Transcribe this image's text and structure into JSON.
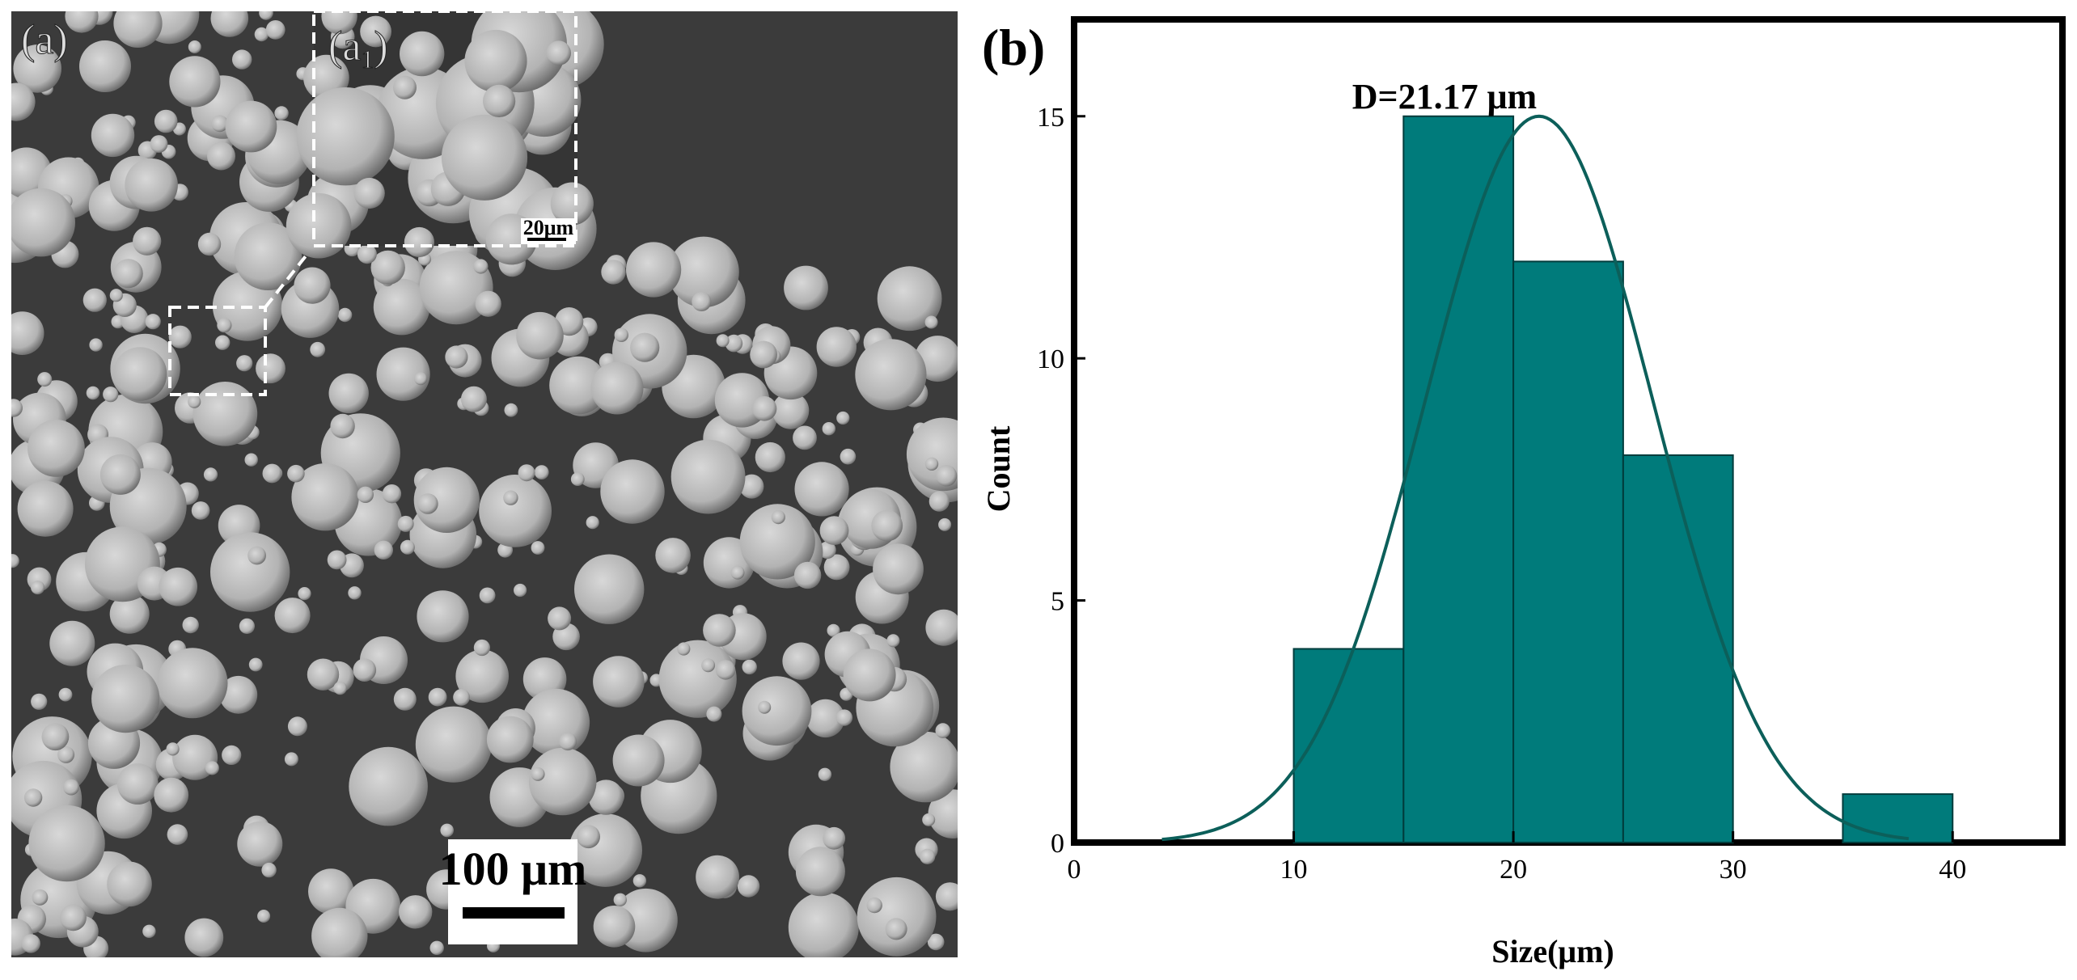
{
  "panel_a": {
    "label": "(a)",
    "inset_label_main": "(a",
    "inset_label_sub": "1",
    "inset_label_close": ")",
    "inset_scale": "20μm",
    "main_scale": "100 μm",
    "colors": {
      "background": "#3b3b3b",
      "particle": "#b3b3b3",
      "particle_edge": "#6a6a6a",
      "dash": "#ffffff"
    }
  },
  "panel_b": {
    "label": "(b)",
    "annotation": "D=21.17 μm"
  },
  "chart_data": {
    "type": "bar",
    "title": "",
    "xlabel": "Size(μm)",
    "ylabel": "Count",
    "xlim": [
      0,
      45
    ],
    "ylim": [
      0,
      17
    ],
    "x_ticks": [
      0,
      10,
      20,
      30,
      40
    ],
    "y_ticks": [
      0,
      5,
      10,
      15
    ],
    "bins": [
      {
        "start": 10,
        "end": 15,
        "count": 4
      },
      {
        "start": 15,
        "end": 20,
        "count": 15
      },
      {
        "start": 20,
        "end": 25,
        "count": 12
      },
      {
        "start": 25,
        "end": 30,
        "count": 8
      },
      {
        "start": 35,
        "end": 40,
        "count": 1
      }
    ],
    "fit": {
      "type": "normal",
      "mean": 21.17,
      "sd": 5.2,
      "peak": 15,
      "x_from": 4,
      "x_to": 38
    },
    "colors": {
      "bar": "#007b7b",
      "bar_edge": "#003c3c",
      "curve": "#0c5f5a",
      "axis": "#000000"
    }
  }
}
